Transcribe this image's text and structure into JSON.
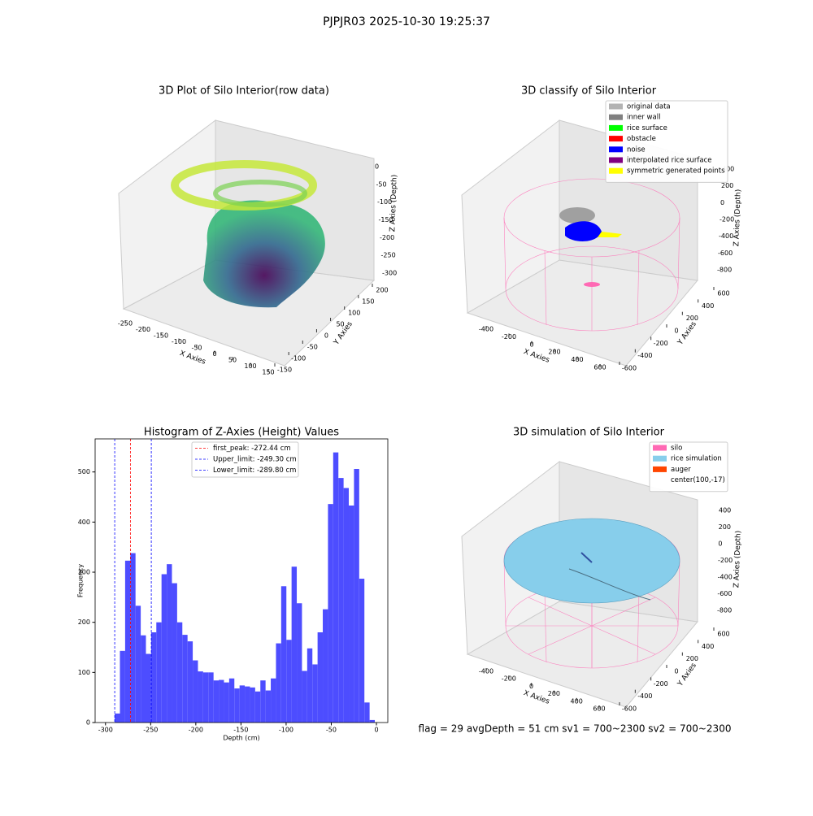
{
  "title": "PJPJR03 2025-10-30 19:25:37",
  "footer": "flag = 29  avgDepth = 51 cm    sv1 = 700~2300  sv2 = 700~2300",
  "chart_data": [
    {
      "type": "scatter3d",
      "title": "3D Plot of Silo Interior(row data)",
      "xlabel": "X Axies",
      "ylabel": "Y Axies",
      "zlabel": "Z Axies (Depth)",
      "xticks": [
        -250,
        -200,
        -150,
        -100,
        -50,
        0,
        50,
        100,
        150
      ],
      "yticks": [
        -150,
        -100,
        -50,
        0,
        50,
        100,
        150,
        200
      ],
      "zticks": [
        0,
        -50,
        -100,
        -150,
        -200,
        -250,
        -300
      ]
    },
    {
      "type": "scatter3d",
      "title": "3D classify of Silo Interior",
      "xlabel": "X Axies",
      "ylabel": "Y Axies",
      "zlabel": "Z Axies (Depth)",
      "xticks": [
        -400,
        -200,
        0,
        200,
        400,
        600
      ],
      "yticks": [
        -600,
        -400,
        -200,
        0,
        200,
        400,
        600
      ],
      "zticks": [
        400,
        200,
        0,
        -200,
        -400,
        -600,
        -800
      ],
      "legend": [
        {
          "label": "original data",
          "color": "#b3b3b3"
        },
        {
          "label": "inner wall",
          "color": "#808080"
        },
        {
          "label": "rice surface",
          "color": "#00ff00"
        },
        {
          "label": "obstacle",
          "color": "#ff0000"
        },
        {
          "label": "noise",
          "color": "#0000ff"
        },
        {
          "label": "interpolated rice surface",
          "color": "#800080"
        },
        {
          "label": "symmetric generated points",
          "color": "#ffff00"
        }
      ]
    },
    {
      "type": "histogram",
      "title": "Histogram of Z-Axies (Height) Values",
      "xlabel": "Depth (cm)",
      "ylabel": "Frequency",
      "color": "#4d4dff",
      "bins": [
        -289.8,
        -284.04,
        -278.28,
        -272.52,
        -266.76,
        -261.0,
        -255.24,
        -249.48,
        -243.72,
        -237.96,
        -232.2,
        -226.44,
        -220.68,
        -214.92,
        -209.16,
        -203.4,
        -197.64,
        -191.88,
        -186.12,
        -180.36,
        -174.6,
        -168.84,
        -163.08,
        -157.32,
        -151.56,
        -145.8,
        -140.04,
        -134.28,
        -128.52,
        -122.76,
        -117.0,
        -111.24,
        -105.48,
        -99.72,
        -93.96,
        -88.2,
        -82.44,
        -76.68,
        -70.92,
        -65.16,
        -59.4,
        -53.64,
        -47.88,
        -42.12,
        -36.36,
        -30.6,
        -24.84,
        -19.08,
        -13.32,
        -7.56,
        -1.8
      ],
      "counts": [
        18,
        143,
        323,
        338,
        233,
        174,
        137,
        180,
        200,
        296,
        316,
        278,
        200,
        175,
        162,
        124,
        102,
        100,
        100,
        84,
        85,
        80,
        88,
        68,
        74,
        72,
        70,
        62,
        84,
        64,
        88,
        158,
        272,
        165,
        311,
        238,
        103,
        148,
        116,
        180,
        226,
        436,
        539,
        488,
        468,
        433,
        506,
        287,
        40,
        5
      ],
      "xlim": [
        -311.5,
        12.6
      ],
      "ylim": [
        0,
        566
      ],
      "xticks": [
        -300,
        -250,
        -200,
        -150,
        -100,
        -50,
        0
      ],
      "yticks": [
        0,
        100,
        200,
        300,
        400,
        500
      ],
      "vlines": [
        {
          "name": "first_peak: -272.44 cm",
          "value": -272.44,
          "color": "#ff0000"
        },
        {
          "name": "Upper_limit: -249.30 cm",
          "value": -249.3,
          "color": "#0000ff"
        },
        {
          "name": "Lower_limit: -289.80 cm",
          "value": -289.8,
          "color": "#0000ff"
        }
      ]
    },
    {
      "type": "surface3d",
      "title": "3D simulation of Silo Interior",
      "xlabel": "X Axies",
      "ylabel": "Y Axies",
      "zlabel": "Z Axies (Depth)",
      "xticks": [
        -400,
        -200,
        0,
        200,
        400,
        600
      ],
      "yticks": [
        -600,
        -400,
        -200,
        0,
        200,
        400,
        600
      ],
      "zticks": [
        400,
        200,
        0,
        -200,
        -400,
        -600,
        -800
      ],
      "legend": [
        {
          "label": "silo",
          "color": "#ff69b4"
        },
        {
          "label": "rice simulation",
          "color": "#87ceeb"
        },
        {
          "label": "auger",
          "color": "#ff4500"
        },
        {
          "label": "center(100,-17)"
        }
      ]
    }
  ]
}
